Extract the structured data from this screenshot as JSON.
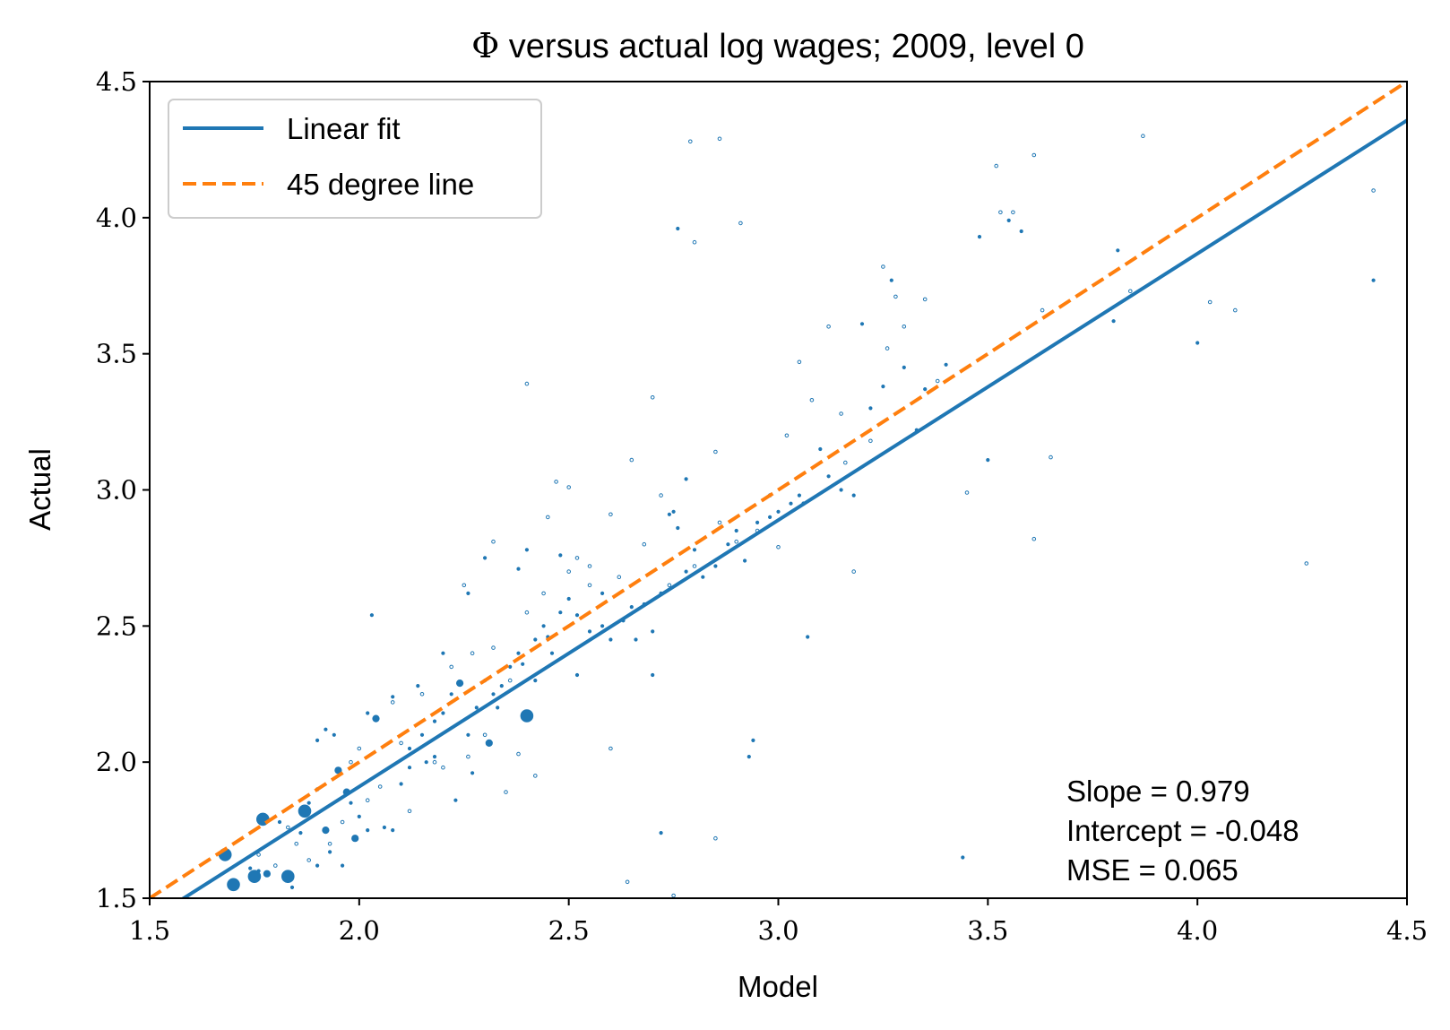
{
  "chart_data": {
    "type": "scatter",
    "title": "Φ versus actual log wages; 2009, level 0",
    "title_prefix": "Φ",
    "title_rest": " versus actual log wages; 2009, level 0",
    "xlabel": "Model",
    "ylabel": "Actual",
    "xlim": [
      1.5,
      4.5
    ],
    "ylim": [
      1.5,
      4.5
    ],
    "xticks": [
      "1.5",
      "2.0",
      "2.5",
      "3.0",
      "3.5",
      "4.0",
      "4.5"
    ],
    "yticks": [
      "1.5",
      "2.0",
      "2.5",
      "3.0",
      "3.5",
      "4.0",
      "4.5"
    ],
    "grid": false,
    "legend_position": "upper-left",
    "legend": [
      {
        "label": "Linear fit",
        "style": "solid",
        "color": "#1f77b4"
      },
      {
        "label": "45 degree line",
        "style": "dashed",
        "color": "#ff7f0e"
      }
    ],
    "fit_line": {
      "slope": 0.979,
      "intercept": -0.048,
      "color": "#1f77b4"
    },
    "reference_line": {
      "slope": 1.0,
      "intercept": 0.0,
      "color": "#ff7f0e"
    },
    "annotations": [
      "Slope = 0.979",
      "Intercept = -0.048",
      "MSE = 0.065"
    ],
    "annotation_position": "lower-right",
    "point_color": "#1f77b4",
    "points": [
      [
        1.68,
        1.66,
        3
      ],
      [
        1.7,
        1.55,
        3
      ],
      [
        1.75,
        1.58,
        3
      ],
      [
        1.77,
        1.79,
        3
      ],
      [
        1.78,
        1.59,
        2
      ],
      [
        1.83,
        1.58,
        3
      ],
      [
        1.87,
        1.82,
        3
      ],
      [
        1.92,
        1.75,
        2
      ],
      [
        1.95,
        1.97,
        2
      ],
      [
        1.97,
        1.89,
        2
      ],
      [
        1.99,
        1.72,
        2
      ],
      [
        2.04,
        2.16,
        2
      ],
      [
        2.24,
        2.29,
        2
      ],
      [
        2.31,
        2.07,
        2
      ],
      [
        2.4,
        2.17,
        3
      ],
      [
        1.76,
        1.6,
        1
      ],
      [
        1.74,
        1.61,
        1
      ],
      [
        1.81,
        1.78,
        1
      ],
      [
        1.84,
        1.54,
        1
      ],
      [
        1.86,
        1.74,
        1
      ],
      [
        1.88,
        1.85,
        1
      ],
      [
        1.9,
        1.62,
        1
      ],
      [
        1.93,
        1.67,
        1
      ],
      [
        1.96,
        1.62,
        1
      ],
      [
        1.98,
        1.85,
        1
      ],
      [
        2.0,
        1.8,
        1
      ],
      [
        2.02,
        1.75,
        1
      ],
      [
        2.06,
        1.76,
        1
      ],
      [
        2.08,
        1.75,
        1
      ],
      [
        2.1,
        1.92,
        1
      ],
      [
        2.12,
        2.05,
        1
      ],
      [
        2.15,
        2.1,
        1
      ],
      [
        2.18,
        2.15,
        1
      ],
      [
        2.2,
        2.18,
        1
      ],
      [
        2.22,
        2.25,
        1
      ],
      [
        2.26,
        2.1,
        1
      ],
      [
        2.28,
        2.2,
        1
      ],
      [
        2.3,
        2.3,
        1
      ],
      [
        2.32,
        2.25,
        1
      ],
      [
        2.34,
        2.28,
        1
      ],
      [
        2.36,
        2.35,
        1
      ],
      [
        2.38,
        2.4,
        1
      ],
      [
        2.42,
        2.45,
        1
      ],
      [
        2.44,
        2.5,
        1
      ],
      [
        2.46,
        2.4,
        1
      ],
      [
        2.48,
        2.55,
        1
      ],
      [
        2.5,
        2.6,
        1
      ],
      [
        2.52,
        2.32,
        1
      ],
      [
        2.55,
        2.48,
        1
      ],
      [
        2.58,
        2.5,
        1
      ],
      [
        2.6,
        2.45,
        1
      ],
      [
        2.63,
        2.52,
        1
      ],
      [
        2.66,
        2.45,
        1
      ],
      [
        2.68,
        2.58,
        1
      ],
      [
        2.7,
        2.48,
        1
      ],
      [
        2.72,
        2.62,
        1
      ],
      [
        2.74,
        2.91,
        1
      ],
      [
        2.76,
        2.86,
        1
      ],
      [
        2.78,
        2.7,
        1
      ],
      [
        2.8,
        2.78,
        1
      ],
      [
        2.82,
        2.68,
        1
      ],
      [
        2.85,
        2.72,
        1
      ],
      [
        2.88,
        2.8,
        1
      ],
      [
        2.9,
        2.85,
        1
      ],
      [
        2.92,
        2.74,
        1
      ],
      [
        2.95,
        2.88,
        1
      ],
      [
        2.98,
        2.9,
        1
      ],
      [
        3.0,
        2.92,
        1
      ],
      [
        3.03,
        2.95,
        1
      ],
      [
        3.05,
        2.98,
        1
      ],
      [
        3.07,
        2.46,
        1
      ],
      [
        3.1,
        3.15,
        1
      ],
      [
        3.12,
        3.05,
        1
      ],
      [
        3.15,
        3.0,
        1
      ],
      [
        3.18,
        2.98,
        1
      ],
      [
        3.2,
        3.61,
        1
      ],
      [
        3.22,
        3.3,
        1
      ],
      [
        3.25,
        3.38,
        1
      ],
      [
        3.27,
        3.77,
        1
      ],
      [
        3.3,
        3.45,
        1
      ],
      [
        3.33,
        3.22,
        1
      ],
      [
        3.35,
        3.37,
        1
      ],
      [
        3.4,
        3.46,
        1
      ],
      [
        3.48,
        3.93,
        1
      ],
      [
        3.5,
        3.11,
        1
      ],
      [
        3.55,
        3.99,
        1
      ],
      [
        3.58,
        3.95,
        1
      ],
      [
        3.44,
        1.65,
        1
      ],
      [
        3.8,
        3.62,
        1
      ],
      [
        3.81,
        3.88,
        1
      ],
      [
        4.0,
        3.54,
        1
      ],
      [
        4.42,
        3.77,
        1
      ],
      [
        2.03,
        2.54,
        1
      ],
      [
        2.4,
        2.78,
        1
      ],
      [
        2.38,
        2.71,
        1
      ],
      [
        2.3,
        2.75,
        1
      ],
      [
        2.26,
        2.62,
        1
      ],
      [
        2.2,
        2.4,
        1
      ],
      [
        2.14,
        2.28,
        1
      ],
      [
        2.08,
        2.24,
        1
      ],
      [
        2.02,
        2.18,
        1
      ],
      [
        1.94,
        2.1,
        1
      ],
      [
        1.92,
        2.12,
        1
      ],
      [
        1.9,
        2.08,
        1
      ],
      [
        2.72,
        1.74,
        1
      ],
      [
        2.94,
        2.08,
        1
      ],
      [
        2.93,
        2.02,
        1
      ],
      [
        2.76,
        3.96,
        1
      ],
      [
        2.78,
        3.04,
        1
      ],
      [
        2.75,
        2.92,
        1
      ],
      [
        2.7,
        2.32,
        1
      ],
      [
        2.65,
        2.57,
        1
      ],
      [
        2.58,
        2.62,
        1
      ],
      [
        2.52,
        2.54,
        1
      ],
      [
        2.48,
        2.76,
        1
      ],
      [
        2.45,
        2.46,
        1
      ],
      [
        2.42,
        2.3,
        1
      ],
      [
        2.39,
        2.36,
        1
      ],
      [
        2.33,
        2.2,
        1
      ],
      [
        2.27,
        1.96,
        1
      ],
      [
        2.23,
        1.86,
        1
      ],
      [
        2.18,
        2.02,
        1
      ],
      [
        2.16,
        2.0,
        1
      ],
      [
        2.12,
        1.98,
        1
      ],
      [
        2.25,
        2.65,
        0
      ],
      [
        2.32,
        2.81,
        0
      ],
      [
        2.4,
        3.39,
        0
      ],
      [
        2.45,
        2.9,
        0
      ],
      [
        2.47,
        3.03,
        0
      ],
      [
        2.5,
        3.01,
        0
      ],
      [
        2.52,
        2.75,
        0
      ],
      [
        2.55,
        2.72,
        0
      ],
      [
        2.6,
        2.91,
        0
      ],
      [
        2.65,
        3.11,
        0
      ],
      [
        2.7,
        3.34,
        0
      ],
      [
        2.72,
        2.98,
        0
      ],
      [
        2.79,
        4.28,
        0
      ],
      [
        2.8,
        3.91,
        0
      ],
      [
        2.86,
        4.29,
        0
      ],
      [
        2.91,
        3.98,
        0
      ],
      [
        2.85,
        3.14,
        0
      ],
      [
        2.95,
        2.85,
        0
      ],
      [
        3.0,
        2.79,
        0
      ],
      [
        3.02,
        3.2,
        0
      ],
      [
        3.05,
        3.47,
        0
      ],
      [
        3.08,
        3.33,
        0
      ],
      [
        3.12,
        3.6,
        0
      ],
      [
        3.15,
        3.28,
        0
      ],
      [
        3.18,
        2.7,
        0
      ],
      [
        3.22,
        3.18,
        0
      ],
      [
        3.25,
        3.82,
        0
      ],
      [
        3.28,
        3.71,
        0
      ],
      [
        3.3,
        3.6,
        0
      ],
      [
        3.35,
        3.7,
        0
      ],
      [
        3.45,
        2.99,
        0
      ],
      [
        3.52,
        4.19,
        0
      ],
      [
        3.53,
        4.02,
        0
      ],
      [
        3.56,
        4.02,
        0
      ],
      [
        3.61,
        4.23,
        0
      ],
      [
        3.61,
        2.82,
        0
      ],
      [
        3.65,
        3.12,
        0
      ],
      [
        3.87,
        4.3,
        0
      ],
      [
        4.03,
        3.69,
        0
      ],
      [
        4.09,
        3.66,
        0
      ],
      [
        4.26,
        2.73,
        0
      ],
      [
        4.42,
        4.1,
        0
      ],
      [
        2.85,
        1.72,
        0
      ],
      [
        2.64,
        1.56,
        0
      ],
      [
        2.75,
        1.51,
        0
      ],
      [
        2.6,
        2.05,
        0
      ],
      [
        2.42,
        1.95,
        0
      ],
      [
        2.38,
        2.03,
        0
      ],
      [
        2.35,
        1.89,
        0
      ],
      [
        2.2,
        1.98,
        0
      ],
      [
        2.12,
        1.82,
        0
      ],
      [
        2.05,
        1.91,
        0
      ],
      [
        1.98,
        2.0,
        0
      ],
      [
        1.9,
        1.9,
        0
      ],
      [
        1.85,
        1.7,
        0
      ],
      [
        1.8,
        1.62,
        0
      ],
      [
        1.76,
        1.66,
        0
      ],
      [
        1.83,
        1.76,
        0
      ],
      [
        1.88,
        1.64,
        0
      ],
      [
        1.93,
        1.7,
        0
      ],
      [
        2.0,
        2.05,
        0
      ],
      [
        2.08,
        2.22,
        0
      ],
      [
        2.15,
        2.25,
        0
      ],
      [
        2.22,
        2.35,
        0
      ],
      [
        2.27,
        2.4,
        0
      ],
      [
        2.32,
        2.42,
        0
      ],
      [
        2.36,
        2.3,
        0
      ],
      [
        2.4,
        2.55,
        0
      ],
      [
        2.44,
        2.62,
        0
      ],
      [
        2.5,
        2.7,
        0
      ],
      [
        2.55,
        2.65,
        0
      ],
      [
        2.62,
        2.68,
        0
      ],
      [
        2.68,
        2.8,
        0
      ],
      [
        2.74,
        2.65,
        0
      ],
      [
        2.8,
        2.72,
        0
      ],
      [
        2.86,
        2.88,
        0
      ],
      [
        2.9,
        2.81,
        0
      ],
      [
        2.98,
        2.98,
        0
      ],
      [
        3.06,
        2.95,
        0
      ],
      [
        3.16,
        3.1,
        0
      ],
      [
        3.26,
        3.52,
        0
      ],
      [
        3.38,
        3.4,
        0
      ],
      [
        3.63,
        3.66,
        0
      ],
      [
        3.84,
        3.73,
        0
      ],
      [
        2.3,
        2.1,
        0
      ],
      [
        2.18,
        2.0,
        0
      ],
      [
        2.1,
        2.07,
        0
      ],
      [
        2.02,
        1.86,
        0
      ],
      [
        1.96,
        1.78,
        0
      ],
      [
        2.26,
        2.02,
        0
      ]
    ]
  }
}
